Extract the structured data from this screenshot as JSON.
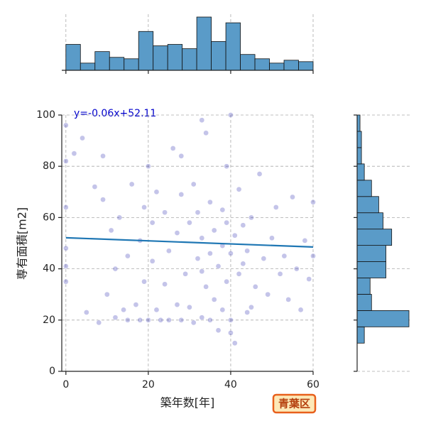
{
  "chart_data": {
    "type": "scatter",
    "xlabel": "築年数[年]",
    "ylabel": "専有面積[m2]",
    "annotation": "y=-0.06x+52.11",
    "badge": "青葉区",
    "xlim": [
      -1,
      60
    ],
    "ylim": [
      0,
      100
    ],
    "xticks": [
      0,
      20,
      40,
      60
    ],
    "yticks": [
      0,
      20,
      40,
      60,
      80,
      100
    ],
    "grid": true,
    "color": "#2b2bb0",
    "line_color": "#1f77b4",
    "hist_color": "#5a9bc8",
    "regression": {
      "slope": -0.06,
      "intercept": 52.11
    },
    "x": [
      0,
      0,
      0,
      0,
      0,
      0,
      2,
      4,
      5,
      7,
      8,
      9,
      9,
      10,
      11,
      12,
      13,
      14,
      15,
      15,
      16,
      17,
      18,
      18,
      19,
      19,
      20,
      20,
      21,
      21,
      22,
      22,
      23,
      24,
      24,
      25,
      25,
      26,
      27,
      27,
      28,
      28,
      29,
      30,
      30,
      31,
      31,
      32,
      32,
      33,
      33,
      33,
      34,
      34,
      35,
      35,
      35,
      36,
      36,
      37,
      37,
      38,
      38,
      38,
      39,
      39,
      39,
      40,
      40,
      40,
      41,
      41,
      42,
      42,
      43,
      43,
      44,
      44,
      45,
      46,
      47,
      48,
      49,
      50,
      51,
      52,
      53,
      54,
      55,
      56,
      57,
      58,
      59,
      60,
      60,
      28,
      33,
      40,
      12,
      45
    ],
    "y": [
      96,
      64,
      48,
      41,
      35,
      82,
      85,
      91,
      23,
      72,
      19,
      67,
      84,
      30,
      55,
      40,
      60,
      24,
      20,
      45,
      73,
      26,
      51,
      20,
      64,
      35,
      80,
      20,
      43,
      58,
      24,
      70,
      20,
      62,
      34,
      20,
      47,
      87,
      26,
      54,
      69,
      20,
      38,
      25,
      58,
      73,
      19,
      44,
      62,
      98,
      21,
      52,
      33,
      93,
      20,
      46,
      66,
      28,
      55,
      16,
      41,
      24,
      63,
      49,
      35,
      80,
      58,
      20,
      46,
      100,
      11,
      53,
      38,
      71,
      42,
      57,
      23,
      47,
      60,
      33,
      77,
      44,
      30,
      52,
      64,
      38,
      45,
      28,
      68,
      40,
      24,
      51,
      36,
      66,
      45,
      84,
      39,
      15,
      21,
      25
    ],
    "x_hist": {
      "bins": [
        0,
        3.53,
        7.06,
        10.59,
        14.12,
        17.65,
        21.18,
        24.71,
        28.24,
        31.76,
        35.29,
        38.82,
        42.35,
        45.88,
        49.41,
        52.94,
        56.47,
        60
      ],
      "counts": [
        18,
        5,
        13,
        9,
        8,
        27,
        17,
        18,
        15,
        37,
        20,
        33,
        11,
        8,
        5,
        7,
        6
      ]
    },
    "y_hist": {
      "bins": [
        11,
        17.36,
        23.71,
        30.07,
        36.43,
        42.79,
        49.14,
        55.5,
        61.86,
        68.21,
        74.57,
        80.93,
        87.29,
        93.64,
        100
      ],
      "counts": [
        5,
        36,
        10,
        9,
        20,
        20,
        24,
        18,
        15,
        10,
        5,
        3,
        3,
        2
      ]
    }
  }
}
